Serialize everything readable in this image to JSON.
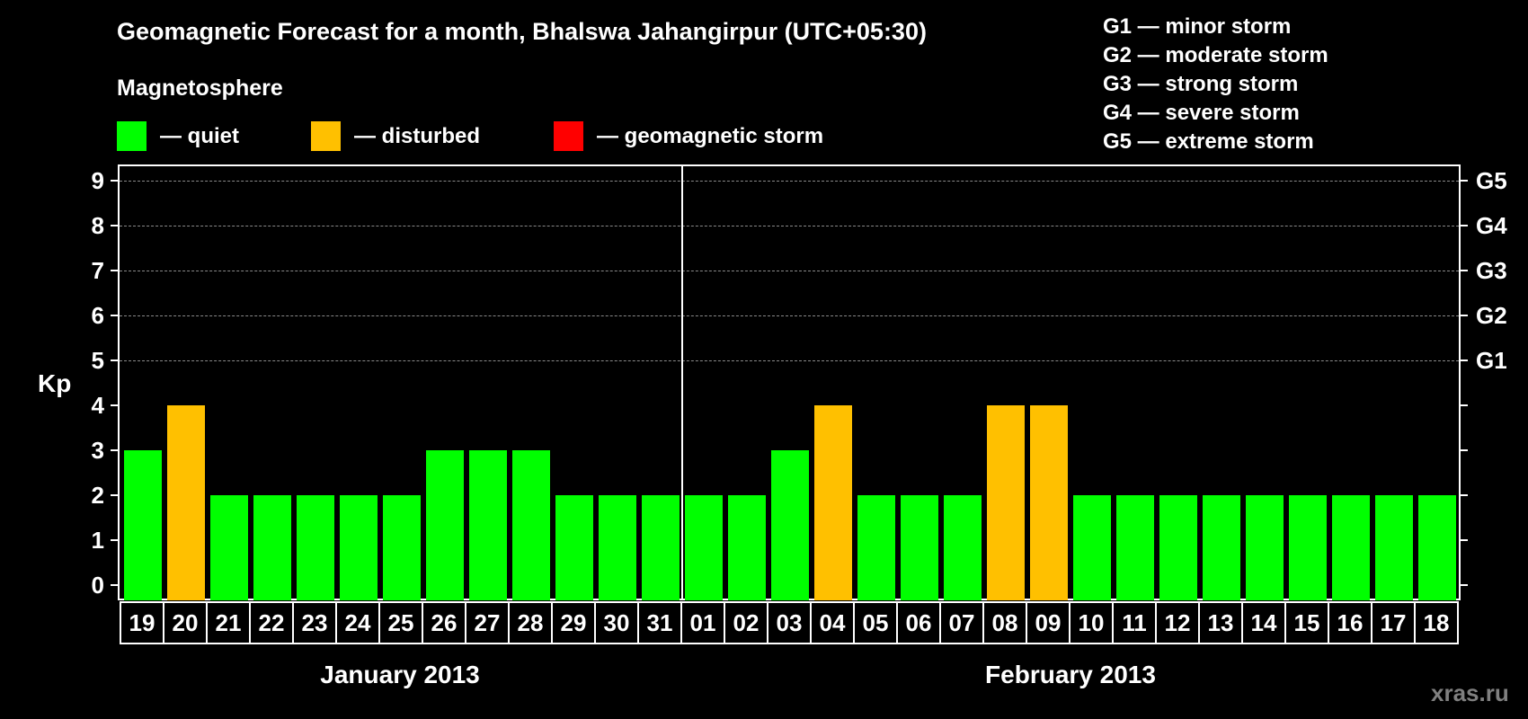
{
  "title": "Geomagnetic Forecast for a month, Bhalswa Jahangirpur (UTC+05:30)",
  "subtitle": "Magnetosphere",
  "legend": [
    {
      "label": "— quiet",
      "color": "#00ff00"
    },
    {
      "label": "— disturbed",
      "color": "#ffc000"
    },
    {
      "label": "— geomagnetic storm",
      "color": "#ff0000"
    }
  ],
  "g_scale": [
    "G1 — minor storm",
    "G2 — moderate storm",
    "G3 — strong storm",
    "G4 — severe storm",
    "G5 — extreme storm"
  ],
  "y_axis": {
    "label": "Kp",
    "ticks": [
      "0",
      "1",
      "2",
      "3",
      "4",
      "5",
      "6",
      "7",
      "8",
      "9"
    ],
    "right_labels": {
      "5": "G1",
      "6": "G2",
      "7": "G3",
      "8": "G4",
      "9": "G5"
    }
  },
  "months": [
    "January 2013",
    "February 2013"
  ],
  "watermark": "xras.ru",
  "colors": {
    "quiet": "#00ff00",
    "disturbed": "#ffc000",
    "storm": "#ff0000",
    "grid": "#8a8a8a",
    "background": "#000000"
  },
  "chart_data": {
    "type": "bar",
    "title": "Geomagnetic Forecast for a month, Bhalswa Jahangirpur (UTC+05:30)",
    "xlabel": "January 2013 / February 2013",
    "ylabel": "Kp",
    "ylim": [
      0,
      9
    ],
    "grid": true,
    "categories": [
      "19",
      "20",
      "21",
      "22",
      "23",
      "24",
      "25",
      "26",
      "27",
      "28",
      "29",
      "30",
      "31",
      "01",
      "02",
      "03",
      "04",
      "05",
      "06",
      "07",
      "08",
      "09",
      "10",
      "11",
      "12",
      "13",
      "14",
      "15",
      "16",
      "17",
      "18"
    ],
    "values": [
      3,
      4,
      2,
      2,
      2,
      2,
      2,
      3,
      3,
      3,
      2,
      2,
      2,
      2,
      2,
      3,
      4,
      2,
      2,
      2,
      4,
      4,
      2,
      2,
      2,
      2,
      2,
      2,
      2,
      2,
      2
    ],
    "status": [
      "quiet",
      "disturbed",
      "quiet",
      "quiet",
      "quiet",
      "quiet",
      "quiet",
      "quiet",
      "quiet",
      "quiet",
      "quiet",
      "quiet",
      "quiet",
      "quiet",
      "quiet",
      "quiet",
      "disturbed",
      "quiet",
      "quiet",
      "quiet",
      "disturbed",
      "disturbed",
      "quiet",
      "quiet",
      "quiet",
      "quiet",
      "quiet",
      "quiet",
      "quiet",
      "quiet",
      "quiet"
    ],
    "legend": [
      "quiet",
      "disturbed",
      "geomagnetic storm"
    ],
    "secondary_axis": {
      "5": "G1",
      "6": "G2",
      "7": "G3",
      "8": "G4",
      "9": "G5"
    }
  }
}
